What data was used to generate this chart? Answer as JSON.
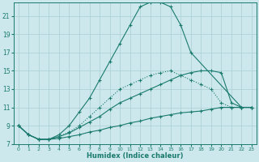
{
  "xlabel": "Humidex (Indice chaleur)",
  "xlim": [
    -0.5,
    23.5
  ],
  "ylim": [
    7,
    22.5
  ],
  "background_color": "#cce8ec",
  "grid_color": "#aacfd4",
  "line_color": "#1a7a6e",
  "xticks": [
    0,
    1,
    2,
    3,
    4,
    5,
    6,
    7,
    8,
    9,
    10,
    11,
    12,
    13,
    14,
    15,
    16,
    17,
    18,
    19,
    20,
    21,
    22,
    23
  ],
  "yticks": [
    7,
    9,
    11,
    13,
    15,
    17,
    19,
    21
  ],
  "series": [
    {
      "x": [
        0,
        1,
        2,
        3,
        4,
        5,
        6,
        7,
        8,
        9,
        10,
        11,
        12,
        13,
        14,
        15,
        16,
        17,
        22,
        23
      ],
      "y": [
        9,
        8,
        7.5,
        7.5,
        8,
        9,
        10.5,
        12,
        14,
        16,
        18,
        20,
        22,
        22.5,
        22.5,
        22,
        20,
        17,
        11,
        11
      ],
      "linestyle": "-",
      "marker": "+"
    },
    {
      "x": [
        0,
        1,
        2,
        3,
        4,
        5,
        6,
        7,
        8,
        9,
        10,
        11,
        12,
        13,
        14,
        15,
        16,
        17,
        18,
        19,
        20,
        21,
        22,
        23
      ],
      "y": [
        9,
        8,
        7.5,
        7.5,
        7.8,
        8.3,
        9,
        10,
        11,
        12,
        13,
        13.5,
        14,
        14.5,
        14.8,
        15,
        14.5,
        14,
        13.5,
        13,
        11.5,
        11,
        11,
        11
      ],
      "linestyle": ":",
      "marker": "+"
    },
    {
      "x": [
        0,
        1,
        2,
        3,
        4,
        5,
        6,
        7,
        8,
        9,
        10,
        11,
        12,
        13,
        14,
        15,
        16,
        17,
        18,
        19,
        20,
        21,
        22,
        23
      ],
      "y": [
        9,
        8,
        7.5,
        7.5,
        7.8,
        8.2,
        8.8,
        9.4,
        10,
        10.8,
        11.5,
        12,
        12.5,
        13,
        13.5,
        14,
        14.5,
        14.8,
        15,
        15,
        14.8,
        11.5,
        11,
        11
      ],
      "linestyle": "-",
      "marker": "+"
    },
    {
      "x": [
        0,
        1,
        2,
        3,
        4,
        5,
        6,
        7,
        8,
        9,
        10,
        11,
        12,
        13,
        14,
        15,
        16,
        17,
        18,
        19,
        20,
        21,
        22,
        23
      ],
      "y": [
        9,
        8,
        7.5,
        7.5,
        7.6,
        7.8,
        8,
        8.3,
        8.5,
        8.8,
        9,
        9.3,
        9.5,
        9.8,
        10,
        10.2,
        10.4,
        10.5,
        10.6,
        10.8,
        11,
        11,
        11,
        11
      ],
      "linestyle": "-",
      "marker": "+"
    }
  ]
}
